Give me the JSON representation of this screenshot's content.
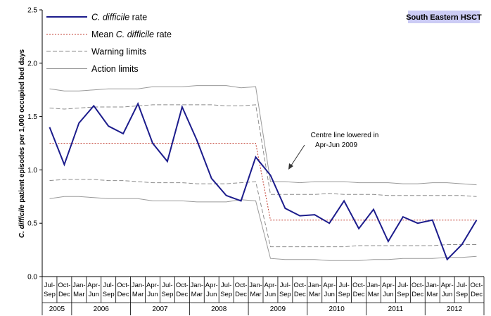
{
  "chart_data": {
    "type": "line",
    "badge": "South Eastern HSCT",
    "y_label": "C. difficile patient episodes per 1,000 occupied bed days",
    "italic_text": "C. difficile",
    "annotation": [
      "Centre line lowered in",
      "Apr-Jun 2009"
    ],
    "categories": [
      [
        "Jul-",
        "Sep"
      ],
      [
        "Oct-",
        "Dec"
      ],
      [
        "Jan-",
        "Mar"
      ],
      [
        "Apr-",
        "Jun"
      ],
      [
        "Jul-",
        "Sep"
      ],
      [
        "Oct-",
        "Dec"
      ],
      [
        "Jan-",
        "Mar"
      ],
      [
        "Apr-",
        "Jun"
      ],
      [
        "Jul-",
        "Sep"
      ],
      [
        "Oct-",
        "Dec"
      ],
      [
        "Jan-",
        "Mar"
      ],
      [
        "Apr-",
        "Jun"
      ],
      [
        "Jul-",
        "Sep"
      ],
      [
        "Oct-",
        "Dec"
      ],
      [
        "Jan-",
        "Mar"
      ],
      [
        "Apr-",
        "Jun"
      ],
      [
        "Jul-",
        "Sep"
      ],
      [
        "Oct-",
        "Dec"
      ],
      [
        "Jan-",
        "Mar"
      ],
      [
        "Apr-",
        "Jun"
      ],
      [
        "Jul-",
        "Sep"
      ],
      [
        "Oct-",
        "Dec"
      ],
      [
        "Jan-",
        "Mar"
      ],
      [
        "Apr-",
        "Jun"
      ],
      [
        "Jul-",
        "Sep"
      ],
      [
        "Oct-",
        "Dec"
      ],
      [
        "Jan-",
        "Mar"
      ],
      [
        "Apr-",
        "Jun"
      ],
      [
        "Jul-",
        "Sep"
      ],
      [
        "Oct-",
        "Dec"
      ]
    ],
    "year_groups": [
      {
        "label": "2005",
        "span": 2
      },
      {
        "label": "2006",
        "span": 4
      },
      {
        "label": "2007",
        "span": 4
      },
      {
        "label": "2008",
        "span": 4
      },
      {
        "label": "2009",
        "span": 4
      },
      {
        "label": "2010",
        "span": 4
      },
      {
        "label": "2011",
        "span": 4
      },
      {
        "label": "2012",
        "span": 4
      }
    ],
    "ylim": [
      0,
      2.5
    ],
    "yticks": [
      {
        "value": 0,
        "label": "0.0"
      },
      0.5,
      {
        "value": 1,
        "label": "1.0"
      },
      1.5,
      {
        "value": 2,
        "label": "2.0"
      },
      2.5
    ],
    "series": [
      {
        "name": "C. difficile rate",
        "color": "#1c1c8c",
        "style": "solid",
        "width": 2,
        "values": [
          1.4,
          1.05,
          1.44,
          1.6,
          1.41,
          1.34,
          1.62,
          1.25,
          1.08,
          1.59,
          1.28,
          0.92,
          0.76,
          0.71,
          1.12,
          0.95,
          0.64,
          0.57,
          0.58,
          0.5,
          0.71,
          0.45,
          0.63,
          0.33,
          0.56,
          0.5,
          0.53,
          0.16,
          0.3,
          0.53
        ]
      },
      {
        "name": "Mean C. difficile rate",
        "color": "#c0392b",
        "style": "dotted",
        "width": 1,
        "values": [
          1.25,
          1.25,
          1.25,
          1.25,
          1.25,
          1.25,
          1.25,
          1.25,
          1.25,
          1.25,
          1.25,
          1.25,
          1.25,
          1.25,
          1.25,
          0.53,
          0.53,
          0.53,
          0.53,
          0.53,
          0.53,
          0.53,
          0.53,
          0.53,
          0.53,
          0.53,
          0.53,
          0.53,
          0.53,
          0.53
        ]
      },
      {
        "name": "Warning limits",
        "color": "#8c8c8c",
        "style": "dashed",
        "width": 1,
        "values": [
          1.58,
          1.57,
          1.58,
          1.59,
          1.59,
          1.59,
          1.6,
          1.61,
          1.61,
          1.61,
          1.61,
          1.61,
          1.6,
          1.6,
          1.61,
          0.77,
          0.77,
          0.77,
          0.77,
          0.78,
          0.77,
          0.77,
          0.77,
          0.76,
          0.76,
          0.76,
          0.76,
          0.76,
          0.76,
          0.75
        ]
      },
      {
        "color": "#8c8c8c",
        "style": "dashed",
        "width": 1,
        "values": [
          0.9,
          0.91,
          0.91,
          0.91,
          0.9,
          0.9,
          0.89,
          0.88,
          0.88,
          0.88,
          0.87,
          0.87,
          0.87,
          0.88,
          0.89,
          0.28,
          0.28,
          0.28,
          0.28,
          0.28,
          0.28,
          0.29,
          0.29,
          0.29,
          0.29,
          0.29,
          0.29,
          0.3,
          0.3,
          0.3
        ]
      },
      {
        "name": "Action limits",
        "color": "#9a9a9a",
        "style": "solid",
        "width": 1,
        "values": [
          1.76,
          1.74,
          1.74,
          1.75,
          1.76,
          1.76,
          1.76,
          1.78,
          1.78,
          1.78,
          1.79,
          1.79,
          1.79,
          1.77,
          1.78,
          0.89,
          0.89,
          0.88,
          0.89,
          0.89,
          0.89,
          0.88,
          0.88,
          0.88,
          0.87,
          0.87,
          0.88,
          0.88,
          0.87,
          0.86
        ]
      },
      {
        "color": "#9a9a9a",
        "style": "solid",
        "width": 1,
        "values": [
          0.73,
          0.75,
          0.75,
          0.74,
          0.73,
          0.73,
          0.73,
          0.71,
          0.71,
          0.71,
          0.7,
          0.7,
          0.7,
          0.72,
          0.71,
          0.17,
          0.16,
          0.16,
          0.16,
          0.15,
          0.15,
          0.15,
          0.16,
          0.16,
          0.17,
          0.17,
          0.17,
          0.18,
          0.18,
          0.19
        ]
      }
    ]
  }
}
